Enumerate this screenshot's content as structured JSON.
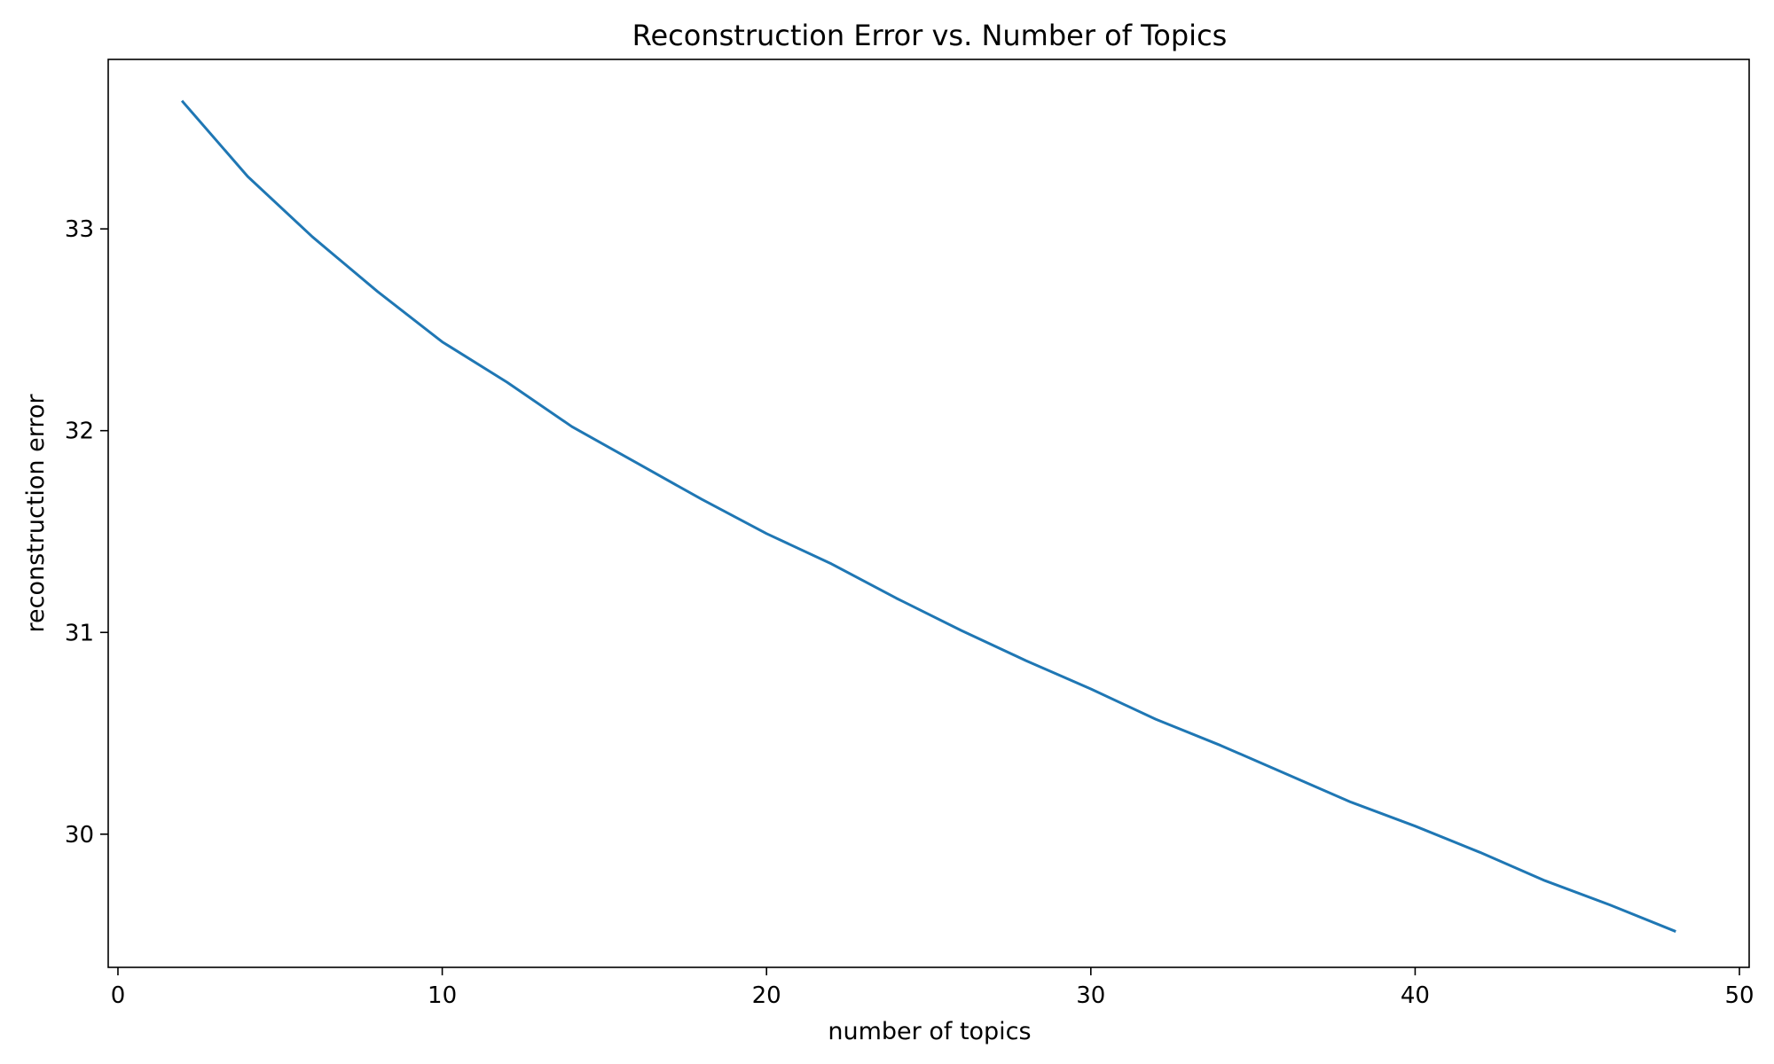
{
  "chart_data": {
    "type": "line",
    "title": "Reconstruction Error vs. Number of Topics",
    "xlabel": "number of topics",
    "ylabel": "reconstruction error",
    "xlim": [
      -0.3,
      50.3
    ],
    "ylim": [
      29.34,
      33.84
    ],
    "xticks": [
      0,
      10,
      20,
      30,
      40,
      50
    ],
    "xtick_labels": [
      "0",
      "10",
      "20",
      "30",
      "40",
      "50"
    ],
    "yticks": [
      30,
      31,
      32,
      33
    ],
    "ytick_labels": [
      "30",
      "31",
      "32",
      "33"
    ],
    "grid": false,
    "series": [
      {
        "color": "#1f77b4",
        "x": [
          2,
          4,
          6,
          8,
          10,
          12,
          14,
          16,
          18,
          20,
          22,
          24,
          26,
          28,
          30,
          32,
          34,
          36,
          38,
          40,
          42,
          44,
          46,
          48
        ],
        "y": [
          33.63,
          33.26,
          32.96,
          32.69,
          32.44,
          32.24,
          32.02,
          31.84,
          31.66,
          31.49,
          31.34,
          31.17,
          31.01,
          30.86,
          30.72,
          30.57,
          30.44,
          30.3,
          30.16,
          30.04,
          29.91,
          29.77,
          29.65,
          29.52
        ]
      }
    ]
  }
}
